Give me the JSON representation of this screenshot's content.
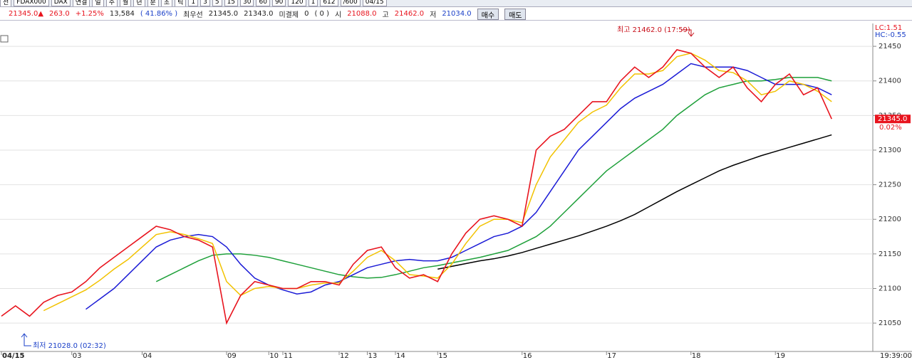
{
  "toolbar": {
    "row1": [
      "전",
      "FDAX000",
      "DAX",
      "연결",
      "일",
      "주",
      "월",
      "년",
      "분",
      "초",
      "틱",
      "1",
      "3",
      "5",
      "15",
      "30",
      "60",
      "90",
      "120",
      "1",
      "612",
      "/600",
      "04/15"
    ],
    "row2": [
      {
        "text": "21345.0▲",
        "color": "#e8141e"
      },
      {
        "text": "263.0",
        "color": "#e8141e"
      },
      {
        "text": "+1.25%",
        "color": "#e8141e"
      },
      {
        "text": "13,584",
        "color": "#222222"
      },
      {
        "text": "( 41.86% )",
        "color": "#1a3fc8"
      },
      {
        "text": "최우선",
        "color": "#222222"
      },
      {
        "text": "21345.0",
        "color": "#222222"
      },
      {
        "text": "21343.0",
        "color": "#222222"
      },
      {
        "text": "미결제",
        "color": "#222222"
      },
      {
        "text": "0",
        "color": "#222222"
      },
      {
        "text": "( 0 )",
        "color": "#222222"
      },
      {
        "text": "시",
        "color": "#222222"
      },
      {
        "text": "21088.0",
        "color": "#e8141e"
      },
      {
        "text": "고",
        "color": "#222222"
      },
      {
        "text": "21462.0",
        "color": "#e8141e"
      },
      {
        "text": "저",
        "color": "#222222"
      },
      {
        "text": "21034.0",
        "color": "#1a3fc8"
      }
    ],
    "buttons": [
      "매수",
      "매도"
    ]
  },
  "chart_data": {
    "type": "line",
    "categories": [
      "04/15",
      null,
      null,
      null,
      null,
      "03",
      null,
      null,
      null,
      null,
      "04",
      null,
      null,
      null,
      null,
      null,
      "09",
      null,
      null,
      "10",
      "11",
      null,
      null,
      null,
      "12",
      null,
      "13",
      null,
      "14",
      null,
      null,
      "15",
      null,
      null,
      null,
      null,
      null,
      "16",
      null,
      null,
      null,
      null,
      null,
      "17",
      null,
      null,
      null,
      null,
      null,
      "18",
      null,
      null,
      null,
      null,
      null,
      "19",
      null,
      null,
      null,
      null
    ],
    "series": [
      {
        "name": "price",
        "color": "#e8141e",
        "values": [
          21060,
          21075,
          21060,
          21080,
          21090,
          21095,
          21110,
          21130,
          21145,
          21160,
          21175,
          21190,
          21185,
          21175,
          21170,
          21160,
          21050,
          21090,
          21110,
          21105,
          21100,
          21100,
          21110,
          21110,
          21105,
          21135,
          21155,
          21160,
          21130,
          21115,
          21120,
          21110,
          21150,
          21180,
          21200,
          21205,
          21200,
          21190,
          21300,
          21320,
          21330,
          21350,
          21370,
          21370,
          21400,
          21420,
          21405,
          21420,
          21445,
          21440,
          21420,
          21405,
          21420,
          21390,
          21370,
          21395,
          21410,
          21380,
          21390,
          21345
        ]
      },
      {
        "name": "ma-short",
        "color": "#f2c200",
        "values": [
          null,
          null,
          null,
          21068,
          21078,
          21088,
          21098,
          21112,
          21128,
          21142,
          21160,
          21178,
          21182,
          21178,
          21172,
          21165,
          21110,
          21090,
          21100,
          21103,
          21100,
          21100,
          21105,
          21108,
          21108,
          21125,
          21145,
          21155,
          21140,
          21120,
          21118,
          21115,
          21135,
          21165,
          21190,
          21200,
          21200,
          21195,
          21250,
          21290,
          21315,
          21340,
          21355,
          21365,
          21390,
          21410,
          21410,
          21415,
          21435,
          21440,
          21430,
          21415,
          21412,
          21400,
          21380,
          21385,
          21400,
          21395,
          21385,
          21370
        ]
      },
      {
        "name": "ma-mid",
        "color": "#1b1bd6",
        "values": [
          null,
          null,
          null,
          null,
          null,
          null,
          21070,
          21085,
          21100,
          21120,
          21140,
          21160,
          21170,
          21175,
          21178,
          21175,
          21160,
          21135,
          21115,
          21105,
          21098,
          21092,
          21095,
          21105,
          21110,
          21120,
          21130,
          21135,
          21140,
          21142,
          21140,
          21140,
          21145,
          21155,
          21165,
          21175,
          21180,
          21190,
          21210,
          21240,
          21270,
          21300,
          21320,
          21340,
          21360,
          21375,
          21385,
          21395,
          21410,
          21425,
          21420,
          21420,
          21420,
          21415,
          21405,
          21395,
          21395,
          21395,
          21390,
          21380
        ]
      },
      {
        "name": "ma-long",
        "color": "#1ea03a",
        "values": [
          null,
          null,
          null,
          null,
          null,
          null,
          null,
          null,
          null,
          null,
          null,
          21110,
          21120,
          21130,
          21140,
          21148,
          21150,
          21150,
          21148,
          21145,
          21140,
          21135,
          21130,
          21125,
          21120,
          21117,
          21115,
          21116,
          21120,
          21125,
          21130,
          21133,
          21137,
          21141,
          21145,
          21150,
          21155,
          21165,
          21175,
          21190,
          21210,
          21230,
          21250,
          21270,
          21285,
          21300,
          21315,
          21330,
          21350,
          21365,
          21380,
          21390,
          21395,
          21400,
          21400,
          21402,
          21405,
          21405,
          21405,
          21400
        ]
      },
      {
        "name": "ma-longest",
        "color": "#000000",
        "values": [
          null,
          null,
          null,
          null,
          null,
          null,
          null,
          null,
          null,
          null,
          null,
          null,
          null,
          null,
          null,
          null,
          null,
          null,
          null,
          null,
          null,
          null,
          null,
          null,
          null,
          null,
          null,
          null,
          null,
          null,
          null,
          21128,
          21132,
          21136,
          21140,
          21143,
          21147,
          21152,
          21158,
          21164,
          21170,
          21176,
          21183,
          21190,
          21198,
          21207,
          21218,
          21229,
          21240,
          21250,
          21260,
          21270,
          21278,
          21285,
          21292,
          21298,
          21304,
          21310,
          21316,
          21322
        ]
      }
    ],
    "ylim": [
      21009,
      21483
    ],
    "yticks": [
      21050,
      21100,
      21150,
      21200,
      21250,
      21300,
      21350,
      21400,
      21450
    ],
    "grid": true,
    "high_label": "최고 21462.0 (17:59)",
    "low_label": "최저 21028.0 (02:32)",
    "lc_label": "LC:1.51",
    "hc_label": "HC:-0.55",
    "current_label": "21345.0",
    "change_label": "0.02%",
    "time_label": "19:39:00"
  }
}
